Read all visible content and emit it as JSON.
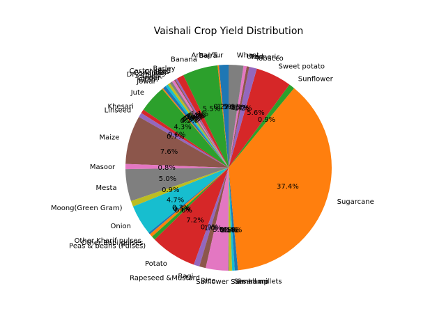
{
  "chart_data": {
    "type": "pie",
    "title": "Vaishali Crop Yield Distribution",
    "start_angle_deg": 90,
    "direction": "counterclockwise",
    "slices": [
      {
        "label": "Arhar/Tur",
        "value": 1.5,
        "pct_label": "1.5%",
        "color": "#1f77b4"
      },
      {
        "label": "Bajra",
        "value": 0.2,
        "pct_label": "0.2%",
        "color": "#ff7f0e"
      },
      {
        "label": "Banana",
        "value": 5.5,
        "pct_label": "5.5%",
        "color": "#2ca02c"
      },
      {
        "label": "Barley",
        "value": 1.1,
        "pct_label": "1.1%",
        "color": "#d62728"
      },
      {
        "label": "Castor seed",
        "value": 0.3,
        "pct_label": "0.3%",
        "color": "#9467bd"
      },
      {
        "label": "Chillies",
        "value": 0.2,
        "pct_label": "0.2%",
        "color": "#8c564b"
      },
      {
        "label": "Coriander",
        "value": 0.4,
        "pct_label": "0.4%",
        "color": "#e377c2"
      },
      {
        "label": "Dry chillies",
        "value": 0.4,
        "pct_label": "0.4%",
        "color": "#7f7f7f"
      },
      {
        "label": "Garlic",
        "value": 0.4,
        "pct_label": "0.4%",
        "color": "#bcbd22"
      },
      {
        "label": "Ginger",
        "value": 0.4,
        "pct_label": "0.4%",
        "color": "#17becf"
      },
      {
        "label": "Gram",
        "value": 0.5,
        "pct_label": "0.5%",
        "color": "#1f77b4"
      },
      {
        "label": "Jowar",
        "value": 0.2,
        "pct_label": "0.2%",
        "color": "#ff7f0e"
      },
      {
        "label": "Jute",
        "value": 4.3,
        "pct_label": "4.3%",
        "color": "#2ca02c"
      },
      {
        "label": "Khesari",
        "value": 0.6,
        "pct_label": "0.6%",
        "color": "#d62728"
      },
      {
        "label": "Linseed",
        "value": 0.7,
        "pct_label": "0.7%",
        "color": "#9467bd"
      },
      {
        "label": "Maize",
        "value": 7.6,
        "pct_label": "7.6%",
        "color": "#8c564b"
      },
      {
        "label": "Masoor",
        "value": 0.8,
        "pct_label": "0.8%",
        "color": "#e377c2"
      },
      {
        "label": "Mesta",
        "value": 5.0,
        "pct_label": "5.0%",
        "color": "#7f7f7f"
      },
      {
        "label": "Moong(Green Gram)",
        "value": 0.9,
        "pct_label": "0.9%",
        "color": "#bcbd22"
      },
      {
        "label": "Onion",
        "value": 4.7,
        "pct_label": "4.7%",
        "color": "#17becf"
      },
      {
        "label": "Other Kharif pulses",
        "value": 0.3,
        "pct_label": "0.3%",
        "color": "#1f77b4"
      },
      {
        "label": "Other Rabi pulses",
        "value": 0.5,
        "pct_label": "0.5%",
        "color": "#ff7f0e"
      },
      {
        "label": "Peas & beans (Pulses)",
        "value": 0.6,
        "pct_label": "0.6%",
        "color": "#2ca02c"
      },
      {
        "label": "Potato",
        "value": 7.2,
        "pct_label": "7.2%",
        "color": "#d62728"
      },
      {
        "label": "Ragi",
        "value": 0.9,
        "pct_label": "0.9%",
        "color": "#9467bd"
      },
      {
        "label": "Rapeseed &Mustard",
        "value": 1.0,
        "pct_label": "1.0%",
        "color": "#8c564b"
      },
      {
        "label": "Rice",
        "value": 3.5,
        "pct_label": "3.5%",
        "color": "#e377c2"
      },
      {
        "label": "Safflower",
        "value": 0.1,
        "pct_label": "0.1%",
        "color": "#7f7f7f"
      },
      {
        "label": "Sannhamp",
        "value": 0.5,
        "pct_label": "0.5%",
        "color": "#bcbd22"
      },
      {
        "label": "Sesamum",
        "value": 0.4,
        "pct_label": "0.4%",
        "color": "#17becf"
      },
      {
        "label": "Small millets",
        "value": 0.5,
        "pct_label": "0.5%",
        "color": "#1f77b4"
      },
      {
        "label": "Sugarcane",
        "value": 37.4,
        "pct_label": "37.4%",
        "color": "#ff7f0e"
      },
      {
        "label": "Sunflower",
        "value": 0.9,
        "pct_label": "0.9%",
        "color": "#2ca02c"
      },
      {
        "label": "Sweet potato",
        "value": 5.6,
        "pct_label": "5.6%",
        "color": "#d62728"
      },
      {
        "label": "Tobacco",
        "value": 1.2,
        "pct_label": "1.2%",
        "color": "#9467bd"
      },
      {
        "label": "Turmeric",
        "value": 0.4,
        "pct_label": "0.4%",
        "color": "#8c564b"
      },
      {
        "label": "Urad",
        "value": 0.5,
        "pct_label": "0.5%",
        "color": "#e377c2"
      },
      {
        "label": "Wheat",
        "value": 2.3,
        "pct_label": "2.3%",
        "color": "#7f7f7f"
      }
    ]
  }
}
